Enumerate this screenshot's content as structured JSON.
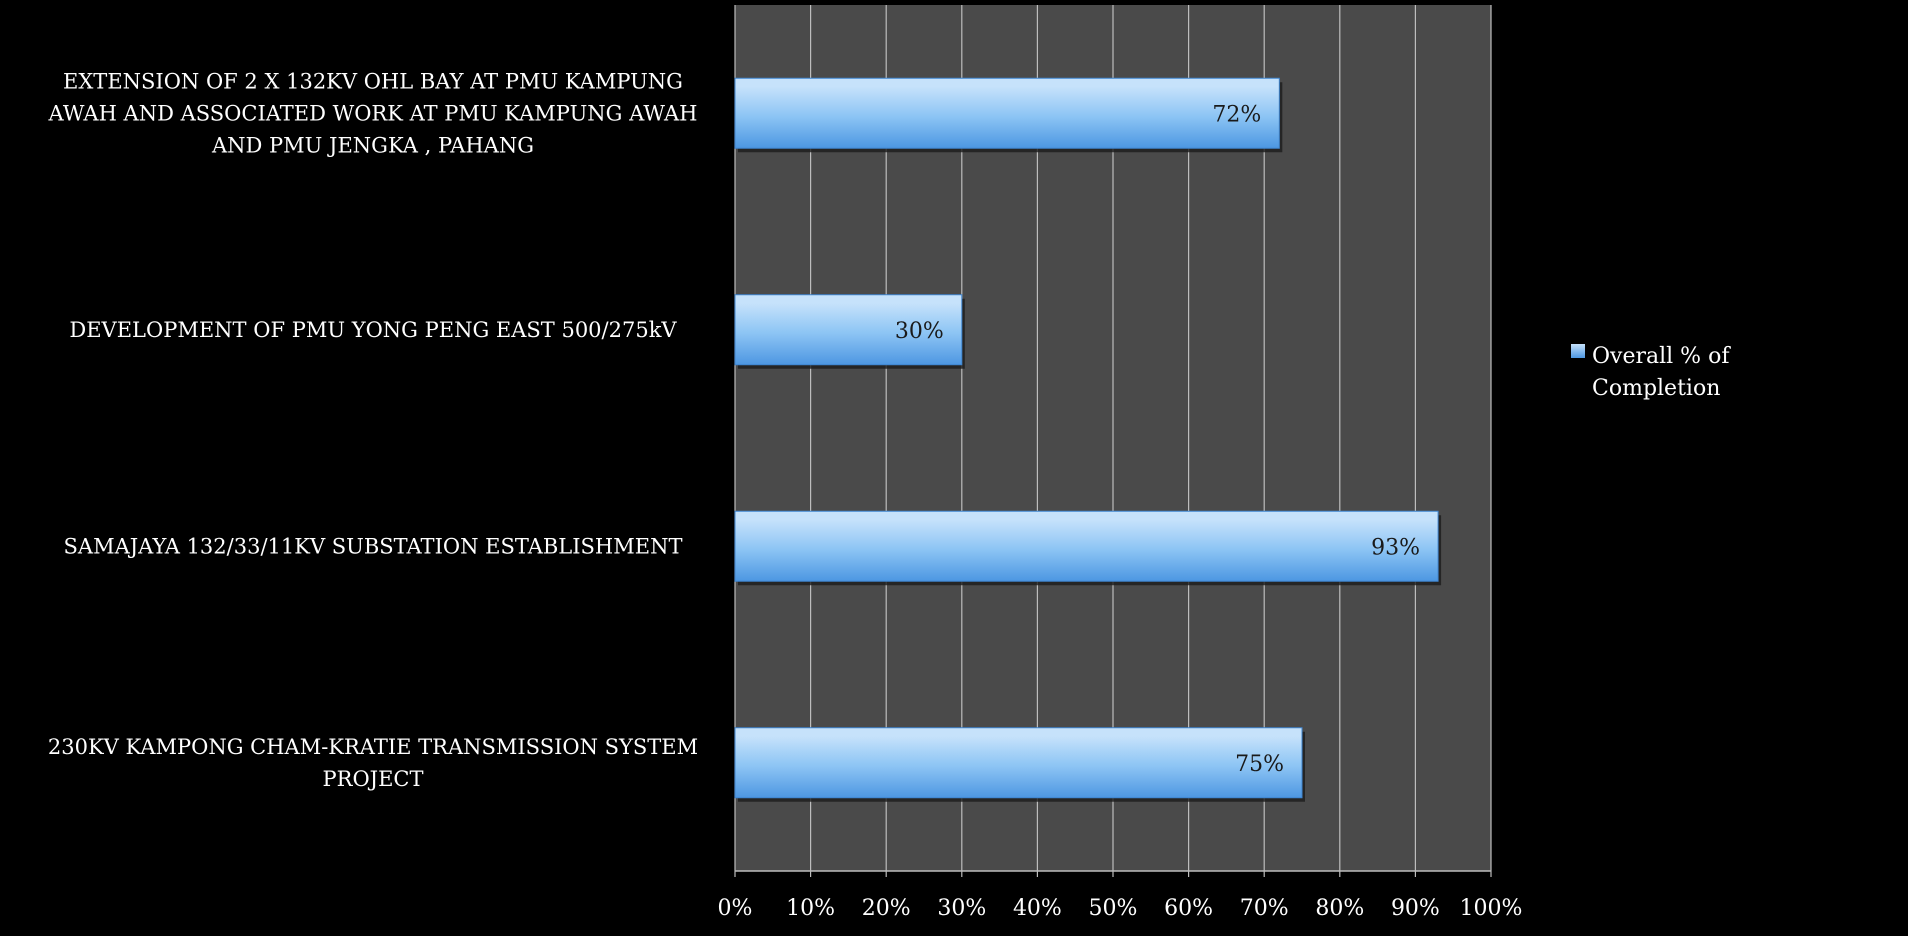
{
  "chart_data": {
    "type": "bar",
    "orientation": "horizontal",
    "categories": [
      [
        "EXTENSION OF 2 X 132KV OHL BAY AT PMU KAMPUNG",
        "AWAH AND ASSOCIATED WORK AT PMU KAMPUNG AWAH",
        "AND PMU JENGKA , PAHANG"
      ],
      [
        "DEVELOPMENT OF PMU YONG PENG EAST 500/275kV"
      ],
      [
        "SAMAJAYA 132/33/11KV SUBSTATION ESTABLISHMENT"
      ],
      [
        "230KV KAMPONG CHAM-KRATIE TRANSMISSION SYSTEM",
        "PROJECT"
      ]
    ],
    "series": [
      {
        "name": "Overall % of Completion",
        "values": [
          72,
          30,
          93,
          75
        ],
        "data_labels": [
          "72%",
          "30%",
          "93%",
          "75%"
        ]
      }
    ],
    "xlim": [
      0,
      100
    ],
    "xticks": [
      "0%",
      "10%",
      "20%",
      "30%",
      "40%",
      "50%",
      "60%",
      "70%",
      "80%",
      "90%",
      "100%"
    ],
    "grid": true,
    "legend": {
      "position": "right",
      "lines": [
        "Overall % of",
        "Completion"
      ]
    },
    "colors": {
      "background": "#000000",
      "plot_area": "#4a4a4a",
      "gridline": "#bdbdbd",
      "bar_light": "#c6e2fb",
      "bar_mid": "#8cc4f4",
      "bar_dark": "#4d97e2",
      "text": "#ffffff",
      "data_label": "#1a1a1a"
    }
  }
}
